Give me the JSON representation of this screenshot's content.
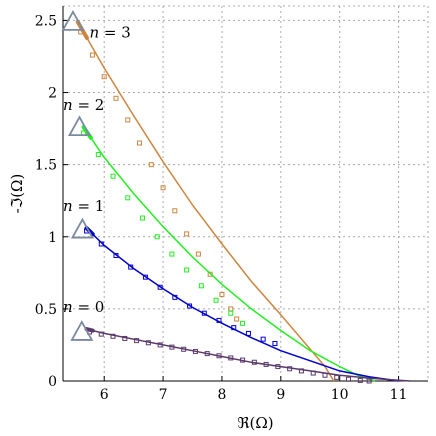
{
  "chart_data": {
    "type": "line",
    "title": "",
    "xlabel": "ℜ(Ω)",
    "ylabel": "-ℑ(Ω)",
    "xlim": [
      5.3,
      11.5
    ],
    "ylim": [
      0,
      2.6
    ],
    "xticks": [
      6,
      7,
      8,
      9,
      10,
      11
    ],
    "yticks": [
      0,
      0.5,
      1,
      1.5,
      2,
      2.5
    ],
    "xtick_labels": [
      "6",
      "7",
      "8",
      "9",
      "10",
      "11"
    ],
    "ytick_labels": [
      "0",
      "0.5",
      "1",
      "1.5",
      "2",
      "2.5"
    ],
    "grid": true,
    "grid_style": "dotted",
    "annotations": [
      {
        "n_symbol": "n",
        "eq": " = 3",
        "x": 5.75,
        "y": 2.38
      },
      {
        "n_symbol": "n",
        "eq": " = 2",
        "x": 5.3,
        "y": 1.88
      },
      {
        "n_symbol": "n",
        "eq": " = 1",
        "x": 5.3,
        "y": 1.18
      },
      {
        "n_symbol": "n",
        "eq": " = 0",
        "x": 5.3,
        "y": 0.48
      }
    ],
    "series": [
      {
        "color": "#cd853f",
        "start_marker": {
          "x": 5.47,
          "y": 2.49
        },
        "curve": [
          [
            5.55,
            2.49
          ],
          [
            6.0,
            2.17
          ],
          [
            6.5,
            1.84
          ],
          [
            7.0,
            1.52
          ],
          [
            7.5,
            1.22
          ],
          [
            8.0,
            0.95
          ],
          [
            8.5,
            0.69
          ],
          [
            9.0,
            0.46
          ],
          [
            9.5,
            0.22
          ],
          [
            9.75,
            0.1
          ],
          [
            9.9,
            0.0
          ]
        ],
        "markers": [
          [
            5.6,
            2.42
          ],
          [
            5.8,
            2.26
          ],
          [
            6.0,
            2.11
          ],
          [
            6.2,
            1.96
          ],
          [
            6.4,
            1.81
          ],
          [
            6.6,
            1.65
          ],
          [
            6.8,
            1.5
          ],
          [
            7.0,
            1.34
          ],
          [
            7.2,
            1.18
          ],
          [
            7.4,
            1.02
          ],
          [
            7.6,
            0.88
          ],
          [
            7.8,
            0.74
          ],
          [
            8.0,
            0.6
          ],
          [
            8.15,
            0.5
          ],
          [
            8.25,
            0.43
          ]
        ]
      },
      {
        "color": "#22ee22",
        "start_marker": {
          "x": 5.58,
          "y": 1.76
        },
        "curve": [
          [
            5.65,
            1.76
          ],
          [
            6.0,
            1.55
          ],
          [
            6.5,
            1.3
          ],
          [
            7.0,
            1.07
          ],
          [
            7.5,
            0.86
          ],
          [
            8.0,
            0.67
          ],
          [
            8.5,
            0.5
          ],
          [
            9.0,
            0.35
          ],
          [
            9.5,
            0.21
          ],
          [
            10.0,
            0.1
          ],
          [
            10.3,
            0.04
          ],
          [
            10.6,
            0.0
          ]
        ],
        "markers": [
          [
            5.65,
            1.72
          ],
          [
            5.9,
            1.57
          ],
          [
            6.15,
            1.42
          ],
          [
            6.4,
            1.27
          ],
          [
            6.65,
            1.13
          ],
          [
            6.9,
            1.0
          ],
          [
            7.15,
            0.88
          ],
          [
            7.4,
            0.77
          ],
          [
            7.65,
            0.66
          ],
          [
            7.9,
            0.56
          ],
          [
            8.15,
            0.47
          ],
          [
            8.35,
            0.4
          ]
        ]
      },
      {
        "color": "#0000cc",
        "start_marker": {
          "x": 5.63,
          "y": 1.05
        },
        "curve": [
          [
            5.7,
            1.06
          ],
          [
            6.0,
            0.94
          ],
          [
            6.5,
            0.78
          ],
          [
            7.0,
            0.64
          ],
          [
            7.5,
            0.51
          ],
          [
            8.0,
            0.4
          ],
          [
            8.5,
            0.3
          ],
          [
            9.0,
            0.21
          ],
          [
            9.5,
            0.14
          ],
          [
            10.0,
            0.07
          ],
          [
            10.5,
            0.03
          ],
          [
            11.0,
            0.0
          ]
        ],
        "markers": [
          [
            5.7,
            1.04
          ],
          [
            5.95,
            0.95
          ],
          [
            6.2,
            0.87
          ],
          [
            6.45,
            0.79
          ],
          [
            6.7,
            0.72
          ],
          [
            6.95,
            0.65
          ],
          [
            7.2,
            0.58
          ],
          [
            7.45,
            0.52
          ],
          [
            7.7,
            0.47
          ],
          [
            7.95,
            0.42
          ],
          [
            8.2,
            0.37
          ],
          [
            8.45,
            0.33
          ],
          [
            8.7,
            0.29
          ],
          [
            8.9,
            0.26
          ]
        ]
      },
      {
        "color": "#5b3a6b",
        "start_marker": {
          "x": 5.62,
          "y": 0.34
        },
        "curve": [
          [
            5.7,
            0.36
          ],
          [
            6.0,
            0.33
          ],
          [
            6.5,
            0.29
          ],
          [
            7.0,
            0.25
          ],
          [
            7.5,
            0.21
          ],
          [
            8.0,
            0.17
          ],
          [
            8.5,
            0.13
          ],
          [
            9.0,
            0.1
          ],
          [
            9.5,
            0.07
          ],
          [
            10.0,
            0.04
          ],
          [
            10.5,
            0.02
          ],
          [
            11.0,
            0.005
          ],
          [
            11.2,
            0.0
          ]
        ],
        "markers": [
          [
            5.75,
            0.34
          ],
          [
            5.95,
            0.325
          ],
          [
            6.15,
            0.31
          ],
          [
            6.35,
            0.295
          ],
          [
            6.55,
            0.28
          ],
          [
            6.75,
            0.265
          ],
          [
            6.95,
            0.25
          ],
          [
            7.15,
            0.235
          ],
          [
            7.35,
            0.22
          ],
          [
            7.55,
            0.205
          ],
          [
            7.75,
            0.19
          ],
          [
            7.95,
            0.175
          ],
          [
            8.15,
            0.16
          ],
          [
            8.35,
            0.145
          ],
          [
            8.55,
            0.13
          ],
          [
            8.75,
            0.115
          ],
          [
            8.95,
            0.1
          ],
          [
            9.15,
            0.085
          ],
          [
            9.35,
            0.07
          ],
          [
            9.55,
            0.055
          ],
          [
            9.75,
            0.04
          ],
          [
            9.95,
            0.025
          ],
          [
            10.15,
            0.012
          ],
          [
            10.35,
            0.004
          ],
          [
            10.5,
            0.0
          ]
        ]
      }
    ]
  }
}
